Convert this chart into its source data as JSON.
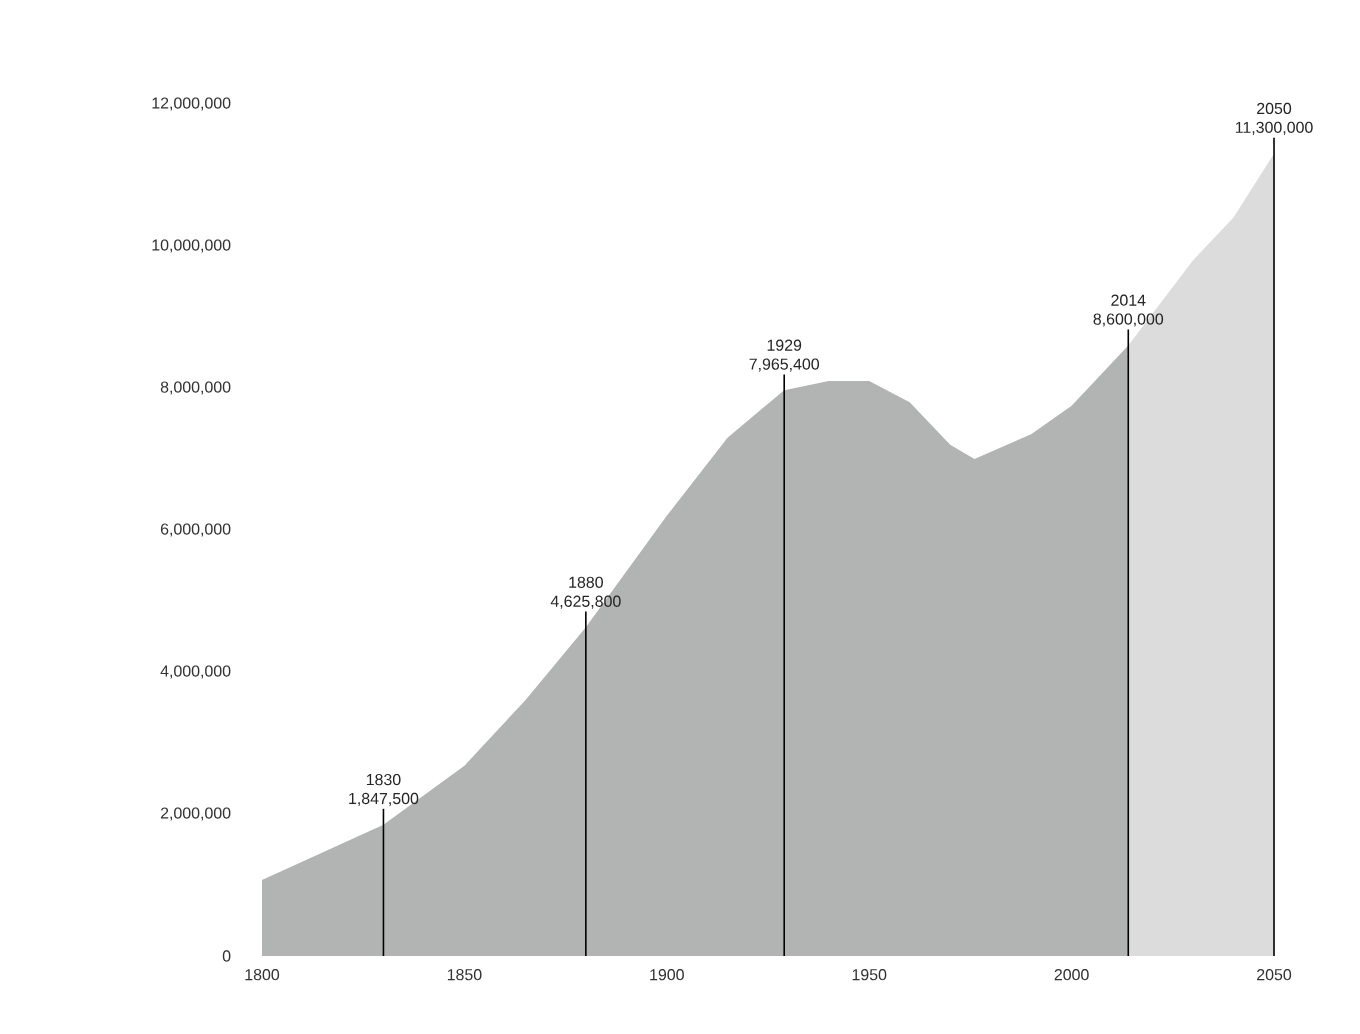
{
  "chart_data": {
    "type": "area",
    "series": [
      {
        "color": "#b1b4b2",
        "x": [
          1800,
          1830,
          1850,
          1865,
          1880,
          1900,
          1915,
          1929,
          1940,
          1950,
          1960,
          1970,
          1976,
          1990,
          2000,
          2014
        ],
        "values": [
          1070000,
          1850000,
          2680000,
          3600000,
          4630000,
          6200000,
          7300000,
          7970000,
          8100000,
          8100000,
          7800000,
          7200000,
          7000000,
          7350000,
          7750000,
          8600000
        ]
      },
      {
        "color": "#dcdcdc",
        "x": [
          2014,
          2020,
          2030,
          2040,
          2050
        ],
        "values": [
          8600000,
          9050000,
          9800000,
          10400000,
          11300000
        ]
      }
    ],
    "xlim": [
      1800,
      2050
    ],
    "xticks": [
      1800,
      1850,
      1900,
      1950,
      2000,
      2050
    ],
    "ylim": [
      0,
      12000000
    ],
    "yticks": [
      0,
      {
        "value": 2000000,
        "label": "2,000,000"
      },
      {
        "value": 4000000,
        "label": "4,000,000"
      },
      {
        "value": 6000000,
        "label": "6,000,000"
      },
      {
        "value": 8000000,
        "label": "8,000,000"
      },
      {
        "value": 10000000,
        "label": "10,000,000"
      },
      {
        "value": 12000000,
        "label": "12,000,000"
      }
    ],
    "annotations": [
      {
        "text": "1830 1,847,500",
        "x": 1830,
        "y": 1847500
      },
      {
        "text": "1880 4,625,800",
        "x": 1880,
        "y": 4625800
      },
      {
        "text": "1929 7,965,400",
        "x": 1929,
        "y": 7965400
      },
      {
        "text": "2014 8,600,000",
        "x": 2014,
        "y": 8600000
      },
      {
        "text": "2050 11,300,000",
        "x": 2050,
        "y": 11300000
      }
    ]
  }
}
